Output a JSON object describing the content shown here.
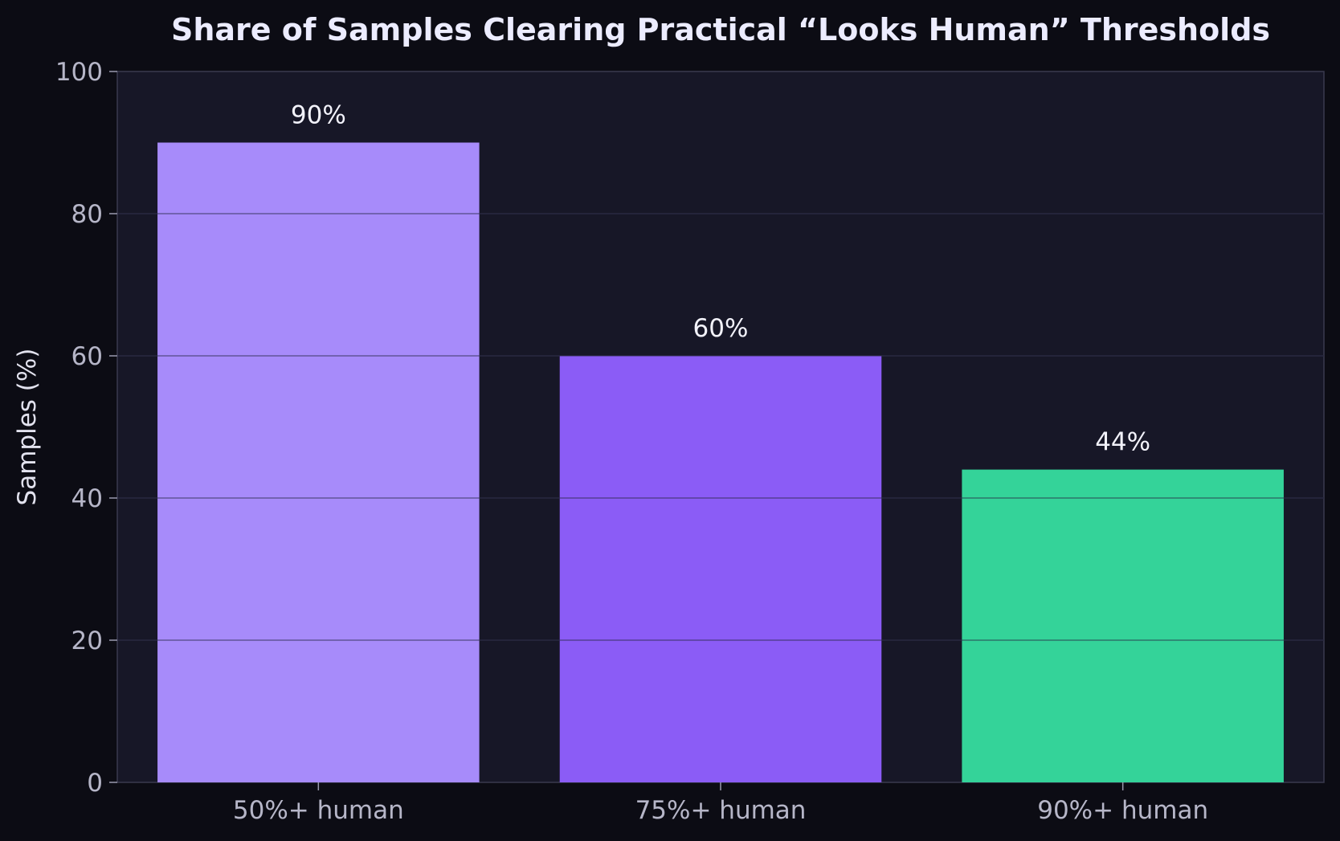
{
  "chart_data": {
    "type": "bar",
    "title": "Share of Samples Clearing Practical “Looks Human” Thresholds",
    "xlabel": "",
    "ylabel": "Samples (%)",
    "categories": [
      "50%+ human",
      "75%+ human",
      "90%+ human"
    ],
    "values": [
      90,
      60,
      44
    ],
    "data_labels": [
      "90%",
      "60%",
      "44%"
    ],
    "ylim": [
      0,
      100
    ],
    "yticks": [
      0,
      20,
      40,
      60,
      80,
      100
    ],
    "grid": true,
    "legend": "none",
    "colors": {
      "bars": [
        "#a78bfa",
        "#8b5cf6",
        "#34d399"
      ],
      "plot_background": "#171727",
      "page_background": "#0c0c14",
      "grid": "#2a2a3c",
      "axis": "#3a3a4e"
    }
  }
}
